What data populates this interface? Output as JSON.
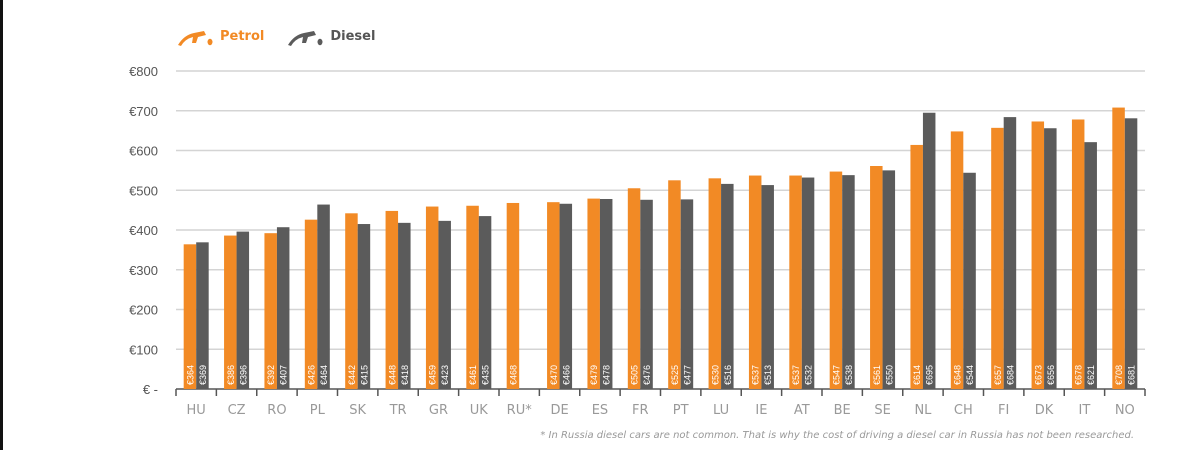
{
  "chart_data": {
    "type": "bar",
    "title": "",
    "xlabel": "",
    "ylabel": "",
    "ylim": [
      0,
      800
    ],
    "yticks": [
      0,
      100,
      200,
      300,
      400,
      500,
      600,
      700,
      800
    ],
    "ytick_labels": [
      "€ -",
      "€100",
      "€200",
      "€300",
      "€400",
      "€500",
      "€600",
      "€700",
      "€800"
    ],
    "grid": true,
    "legend_position": "top-left",
    "categories": [
      "HU",
      "CZ",
      "RO",
      "PL",
      "SK",
      "TR",
      "GR",
      "UK",
      "RU*",
      "DE",
      "ES",
      "FR",
      "PT",
      "LU",
      "IE",
      "AT",
      "BE",
      "SE",
      "NL",
      "CH",
      "FI",
      "DK",
      "IT",
      "NO"
    ],
    "series": [
      {
        "name": "Petrol",
        "color": "#f28a25",
        "icon": "fuel-nozzle-icon",
        "values": [
          364,
          386,
          392,
          426,
          442,
          448,
          459,
          461,
          468,
          470,
          479,
          505,
          525,
          530,
          537,
          537,
          547,
          561,
          614,
          648,
          657,
          673,
          678,
          708
        ]
      },
      {
        "name": "Diesel",
        "color": "#5b5b5b",
        "icon": "fuel-nozzle-icon",
        "values": [
          369,
          396,
          407,
          464,
          415,
          418,
          423,
          435,
          null,
          466,
          478,
          476,
          477,
          516,
          513,
          532,
          538,
          550,
          695,
          544,
          684,
          656,
          621,
          681
        ]
      }
    ],
    "data_label_prefix": "€",
    "footnote": "* In Russia diesel cars are not common. That is why the cost of driving a diesel car in Russia has not been researched."
  }
}
